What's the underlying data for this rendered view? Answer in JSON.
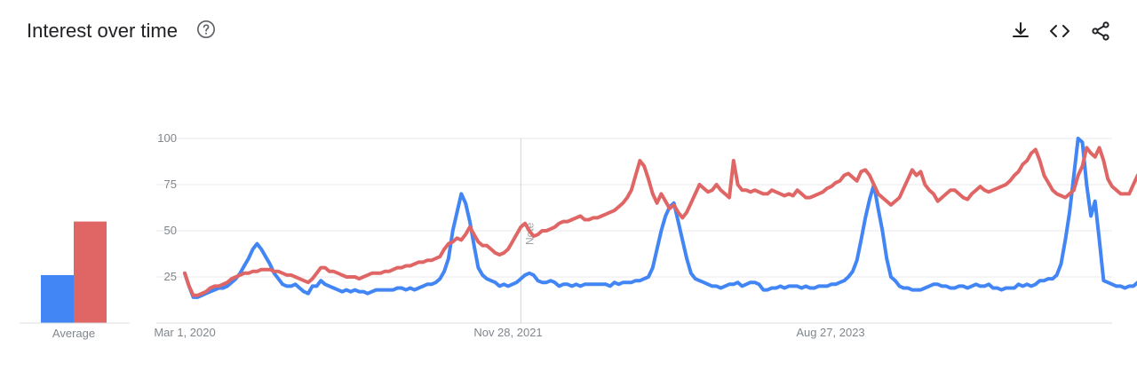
{
  "header": {
    "title": "Interest over time",
    "help_icon": "help-circle-icon",
    "download_icon": "download-icon",
    "embed_icon": "code-icon",
    "share_icon": "share-icon"
  },
  "colors": {
    "series_blue": "#4285f4",
    "series_red": "#e06666",
    "grid": "#e8eaed",
    "axis": "#dadce0",
    "text_muted": "#80868b"
  },
  "chart_data": {
    "type": "line",
    "x_labels": [
      "Mar 1, 2020",
      "Nov 28, 2021",
      "Aug 27, 2023"
    ],
    "y_ticks": [
      "25",
      "50",
      "75",
      "100"
    ],
    "ylim": [
      0,
      100
    ],
    "x_range": [
      0,
      218
    ],
    "note": {
      "label": "Note",
      "x": 79
    },
    "average_label": "Average",
    "averages": [
      26,
      55
    ],
    "series": [
      {
        "color": "#4285f4",
        "values": [
          27,
          20,
          14,
          14,
          15,
          16,
          17,
          18,
          19,
          19,
          20,
          22,
          24,
          27,
          31,
          35,
          40,
          43,
          40,
          36,
          32,
          27,
          24,
          21,
          20,
          20,
          21,
          19,
          17,
          16,
          20,
          20,
          23,
          21,
          20,
          19,
          18,
          17,
          18,
          17,
          18,
          17,
          17,
          16,
          17,
          18,
          18,
          18,
          18,
          18,
          19,
          19,
          18,
          19,
          18,
          19,
          20,
          21,
          21,
          22,
          24,
          28,
          35,
          50,
          60,
          70,
          65,
          55,
          42,
          30,
          26,
          24,
          23,
          22,
          20,
          21,
          20,
          21,
          22,
          24,
          26,
          27,
          26,
          23,
          22,
          22,
          23,
          22,
          20,
          21,
          21,
          20,
          21,
          20,
          21,
          21,
          21,
          21,
          21,
          21,
          20,
          22,
          21,
          22,
          22,
          22,
          23,
          23,
          24,
          25,
          30,
          40,
          50,
          58,
          63,
          65,
          55,
          45,
          35,
          27,
          24,
          23,
          22,
          21,
          20,
          20,
          19,
          20,
          21,
          21,
          22,
          20,
          21,
          22,
          22,
          21,
          18,
          18,
          19,
          19,
          20,
          19,
          20,
          20,
          20,
          19,
          20,
          19,
          19,
          20,
          20,
          20,
          21,
          21,
          22,
          23,
          25,
          28,
          34,
          45,
          57,
          67,
          75,
          62,
          50,
          35,
          25,
          23,
          20,
          19,
          19,
          18,
          18,
          18,
          19,
          20,
          21,
          21,
          20,
          20,
          19,
          19,
          20,
          20,
          19,
          20,
          21,
          20,
          20,
          21,
          19,
          19,
          18,
          19,
          19,
          19,
          21,
          20,
          21,
          20,
          21,
          23,
          23,
          24,
          24,
          26,
          32,
          45,
          60,
          80,
          100,
          98,
          75,
          58,
          66,
          45,
          23,
          22,
          21,
          20,
          20,
          19,
          20,
          20,
          22,
          23,
          23,
          22,
          19,
          21,
          21,
          21,
          20,
          19,
          19,
          20,
          20,
          22
        ],
        "type_hint": "blue"
      },
      {
        "color": "#e06666",
        "values": [
          27,
          20,
          15,
          15,
          16,
          17,
          19,
          20,
          20,
          21,
          22,
          24,
          25,
          26,
          27,
          27,
          28,
          28,
          29,
          29,
          29,
          28,
          28,
          27,
          26,
          26,
          25,
          24,
          23,
          22,
          24,
          27,
          30,
          30,
          28,
          28,
          27,
          26,
          25,
          25,
          25,
          24,
          25,
          26,
          27,
          27,
          27,
          28,
          28,
          29,
          30,
          30,
          31,
          31,
          32,
          33,
          33,
          34,
          34,
          35,
          36,
          40,
          43,
          44,
          46,
          45,
          48,
          52,
          48,
          44,
          42,
          42,
          40,
          38,
          37,
          38,
          40,
          44,
          48,
          52,
          54,
          50,
          47,
          48,
          50,
          50,
          51,
          52,
          54,
          55,
          55,
          56,
          57,
          58,
          56,
          56,
          57,
          57,
          58,
          59,
          60,
          61,
          63,
          65,
          68,
          72,
          80,
          88,
          85,
          78,
          70,
          65,
          70,
          66,
          62,
          64,
          60,
          57,
          60,
          65,
          70,
          75,
          73,
          71,
          72,
          75,
          72,
          70,
          68,
          88,
          75,
          72,
          72,
          71,
          72,
          71,
          70,
          70,
          72,
          71,
          70,
          69,
          70,
          69,
          72,
          70,
          68,
          68,
          69,
          70,
          71,
          73,
          74,
          76,
          77,
          80,
          81,
          79,
          77,
          82,
          83,
          80,
          75,
          70,
          68,
          66,
          64,
          66,
          68,
          73,
          78,
          83,
          80,
          82,
          75,
          72,
          70,
          66,
          68,
          70,
          72,
          72,
          70,
          68,
          67,
          70,
          72,
          74,
          72,
          71,
          72,
          73,
          74,
          75,
          77,
          80,
          82,
          86,
          88,
          92,
          94,
          88,
          80,
          76,
          72,
          70,
          69,
          68,
          70,
          72,
          80,
          85,
          95,
          92,
          90,
          95,
          88,
          78,
          74,
          72,
          70,
          70,
          70,
          75,
          80
        ]
      }
    ]
  }
}
